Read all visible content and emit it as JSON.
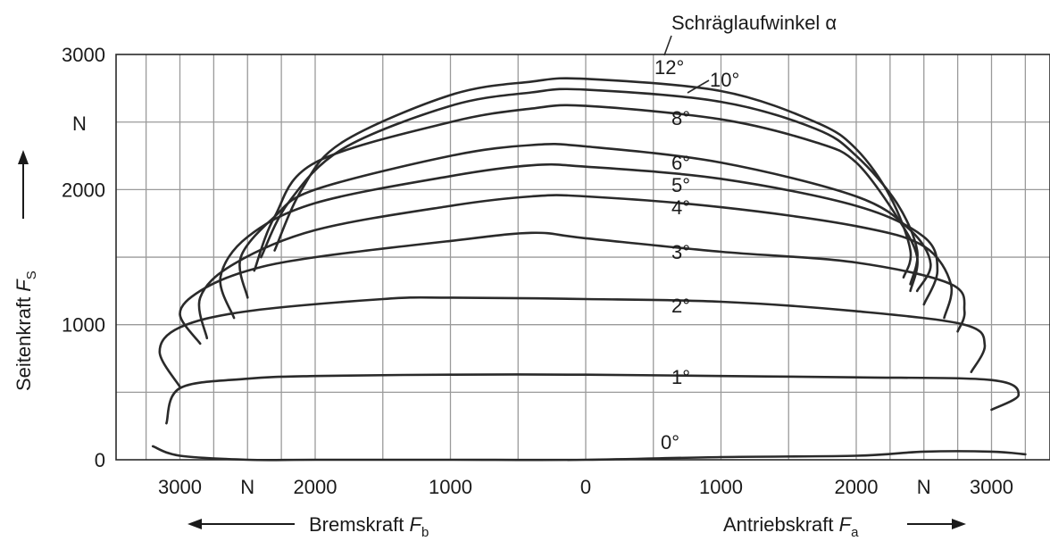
{
  "chart_data": {
    "type": "line",
    "title": "",
    "ylabel": "Seitenkraft",
    "ylabel_symbol": "F",
    "ylabel_sub": "S",
    "y_unit": "N",
    "xlabel_left": "Bremskraft",
    "xlabel_left_symbol": "F",
    "xlabel_left_sub": "b",
    "xlabel_right": "Antriebskraft",
    "xlabel_right_symbol": "F",
    "xlabel_right_sub": "a",
    "parameter_label": "Schräglaufwinkel α",
    "ylim": [
      0,
      3000
    ],
    "xlim": [
      -3400,
      3400
    ],
    "y_ticks": [
      0,
      1000,
      2000,
      3000
    ],
    "y_tick_labels": [
      "0",
      "1000",
      "2000",
      "3000"
    ],
    "x_ticks": [
      -3000,
      -2500,
      -2000,
      -1000,
      0,
      1000,
      2000,
      2500,
      3000
    ],
    "x_tick_labels": [
      "3000",
      "N",
      "2000",
      "1000",
      "0",
      "1000",
      "2000",
      "N",
      "3000"
    ],
    "grid": true,
    "series": [
      {
        "name": "0°",
        "label": "0°",
        "x": [
          -3200,
          -3000,
          -2500,
          -2000,
          -1000,
          0,
          1000,
          2000,
          2500,
          3000,
          3250
        ],
        "y": [
          100,
          30,
          0,
          0,
          0,
          0,
          20,
          30,
          60,
          60,
          40
        ]
      },
      {
        "name": "1°",
        "label": "1°",
        "x": [
          -3100,
          -3000,
          -2500,
          -2000,
          -1000,
          0,
          1000,
          2000,
          3000,
          3200,
          3000
        ],
        "y": [
          270,
          530,
          600,
          620,
          630,
          630,
          620,
          610,
          590,
          480,
          370
        ]
      },
      {
        "name": "2°",
        "label": "2°",
        "x": [
          -3000,
          -3150,
          -3000,
          -2500,
          -1500,
          -1000,
          0,
          1000,
          2000,
          2800,
          2950,
          2850
        ],
        "y": [
          540,
          800,
          980,
          1100,
          1190,
          1200,
          1190,
          1170,
          1100,
          1000,
          850,
          650
        ]
      },
      {
        "name": "3°",
        "label": "3°",
        "x": [
          -2850,
          -3000,
          -2850,
          -2500,
          -2000,
          -1000,
          -400,
          0,
          1000,
          2000,
          2700,
          2800,
          2750
        ],
        "y": [
          860,
          1080,
          1250,
          1400,
          1500,
          1620,
          1680,
          1640,
          1540,
          1460,
          1300,
          1100,
          950
        ]
      },
      {
        "name": "4°",
        "label": "4°",
        "x": [
          -2800,
          -2850,
          -2600,
          -2000,
          -1000,
          -400,
          0,
          1000,
          2000,
          2500,
          2700,
          2650
        ],
        "y": [
          900,
          1200,
          1450,
          1700,
          1880,
          1950,
          1950,
          1870,
          1730,
          1580,
          1300,
          1050
        ]
      },
      {
        "name": "5°",
        "label": "5°",
        "x": [
          -2600,
          -2700,
          -2500,
          -2000,
          -1000,
          -400,
          0,
          1000,
          2000,
          2500,
          2600,
          2500
        ],
        "y": [
          1050,
          1350,
          1650,
          1900,
          2100,
          2180,
          2170,
          2080,
          1880,
          1650,
          1400,
          1150
        ]
      },
      {
        "name": "6°",
        "label": "6°",
        "x": [
          -2500,
          -2550,
          -2300,
          -2000,
          -1000,
          -400,
          0,
          1000,
          2000,
          2400,
          2550,
          2450
        ],
        "y": [
          1200,
          1500,
          1800,
          2000,
          2250,
          2330,
          2320,
          2200,
          1950,
          1700,
          1450,
          1250
        ]
      },
      {
        "name": "8°",
        "label": "8°",
        "x": [
          -2450,
          -2300,
          -2000,
          -1000,
          -400,
          0,
          1000,
          1700,
          2000,
          2300,
          2450,
          2400
        ],
        "y": [
          1400,
          1800,
          2200,
          2500,
          2600,
          2620,
          2520,
          2350,
          2200,
          1800,
          1500,
          1250
        ]
      },
      {
        "name": "10°",
        "label": "10°",
        "x": [
          -2400,
          -2200,
          -1800,
          -1000,
          -400,
          0,
          1000,
          1700,
          2000,
          2300,
          2450,
          2400
        ],
        "y": [
          1500,
          1900,
          2300,
          2620,
          2720,
          2740,
          2650,
          2450,
          2250,
          1900,
          1550,
          1300
        ]
      },
      {
        "name": "12°",
        "label": "12°",
        "x": [
          -2300,
          -2100,
          -1800,
          -1000,
          -400,
          0,
          1000,
          1700,
          2000,
          2250,
          2400,
          2350
        ],
        "y": [
          1550,
          2000,
          2350,
          2700,
          2800,
          2820,
          2730,
          2500,
          2300,
          1950,
          1550,
          1350
        ]
      }
    ]
  }
}
